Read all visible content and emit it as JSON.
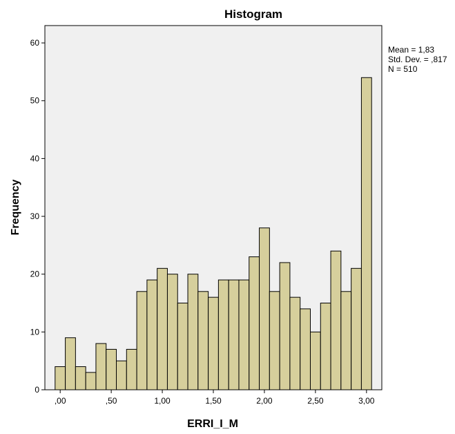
{
  "chart_data": {
    "type": "bar",
    "title": "Histogram",
    "xlabel": "ERRI_I_M",
    "ylabel": "Frequency",
    "xlim": [
      -0.15,
      3.15
    ],
    "ylim": [
      0,
      63
    ],
    "x_ticks": [
      {
        "value": 0.0,
        "label": ",00"
      },
      {
        "value": 0.5,
        "label": ",50"
      },
      {
        "value": 1.0,
        "label": "1,00"
      },
      {
        "value": 1.5,
        "label": "1,50"
      },
      {
        "value": 2.0,
        "label": "2,00"
      },
      {
        "value": 2.5,
        "label": "2,50"
      },
      {
        "value": 3.0,
        "label": "3,00"
      }
    ],
    "y_ticks": [
      {
        "value": 0,
        "label": "0"
      },
      {
        "value": 10,
        "label": "10"
      },
      {
        "value": 20,
        "label": "20"
      },
      {
        "value": 30,
        "label": "30"
      },
      {
        "value": 40,
        "label": "40"
      },
      {
        "value": 50,
        "label": "50"
      },
      {
        "value": 60,
        "label": "60"
      }
    ],
    "bin_start": -0.05,
    "bin_width": 0.1,
    "values": [
      4,
      9,
      4,
      3,
      8,
      7,
      5,
      7,
      17,
      19,
      21,
      20,
      15,
      20,
      17,
      16,
      19,
      19,
      19,
      23,
      28,
      17,
      22,
      16,
      14,
      10,
      15,
      24,
      17,
      21,
      54
    ],
    "stats": {
      "mean": "Mean = 1,83",
      "std_dev": "Std. Dev. = ,817",
      "n": "N = 510"
    },
    "colors": {
      "bar_fill": "#d6cf9c",
      "bar_stroke": "#000000",
      "plot_background": "#f0f0f0"
    },
    "grid": false,
    "legend": "none"
  }
}
